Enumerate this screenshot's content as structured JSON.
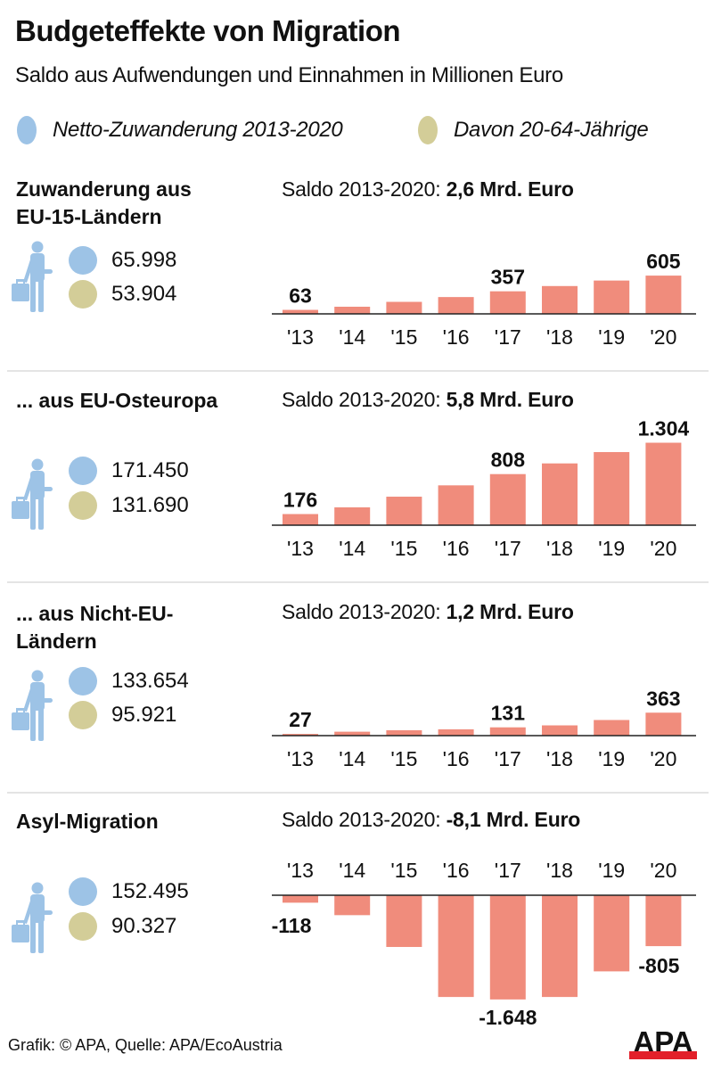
{
  "header": {
    "title": "Budgeteffekte von Migration",
    "subtitle": "Saldo aus Aufwendungen und Einnahmen in Millionen Euro"
  },
  "legend": [
    {
      "label": "Netto-Zuwanderung 2013-2020",
      "color": "#9dc3e6",
      "icon": "circle-blue"
    },
    {
      "label": "Davon 20-64-Jährige",
      "color": "#d3cd98",
      "icon": "circle-olive"
    }
  ],
  "colors": {
    "bar": "#f08c7c",
    "figure": "#9dc3e6",
    "netto": "#9dc3e6",
    "working_age": "#d3cd98",
    "axis": "#222222",
    "separator": "#e4e4e4",
    "logo_red": "#e2202a"
  },
  "sections": [
    {
      "title_lines": [
        "Zuwanderung aus",
        "EU-15-Ländern"
      ],
      "saldo_prefix": "Saldo 2013-2020: ",
      "saldo_value": "2,6 Mrd. Euro",
      "netto": "65.998",
      "working_age": "53.904"
    },
    {
      "title_lines": [
        "... aus EU-Osteuropa"
      ],
      "saldo_prefix": "Saldo 2013-2020: ",
      "saldo_value": "5,8 Mrd. Euro",
      "netto": "171.450",
      "working_age": "131.690"
    },
    {
      "title_lines": [
        "... aus Nicht-EU-",
        "Ländern"
      ],
      "saldo_prefix": "Saldo 2013-2020: ",
      "saldo_value": "1,2 Mrd. Euro",
      "netto": "133.654",
      "working_age": "95.921"
    },
    {
      "title_lines": [
        "Asyl-Migration"
      ],
      "saldo_prefix": "Saldo 2013-2020: ",
      "saldo_value": "-8,1 Mrd. Euro",
      "netto": "152.495",
      "working_age": "90.327"
    }
  ],
  "chart_data": [
    {
      "type": "bar",
      "title": "Zuwanderung aus EU-15-Ländern",
      "categories": [
        "'13",
        "'14",
        "'15",
        "'16",
        "'17",
        "'18",
        "'19",
        "'20"
      ],
      "values": [
        63,
        113,
        190,
        266,
        357,
        440,
        527,
        605
      ],
      "labeled": [
        {
          "index": 0,
          "text": "63"
        },
        {
          "index": 4,
          "text": "357"
        },
        {
          "index": 7,
          "text": "605"
        }
      ],
      "xlabel": "",
      "ylabel": "Mio. Euro",
      "grid": false,
      "legend": "none"
    },
    {
      "type": "bar",
      "title": "... aus EU-Osteuropa",
      "categories": [
        "'13",
        "'14",
        "'15",
        "'16",
        "'17",
        "'18",
        "'19",
        "'20"
      ],
      "values": [
        176,
        282,
        451,
        630,
        808,
        977,
        1156,
        1304
      ],
      "labeled": [
        {
          "index": 0,
          "text": "176"
        },
        {
          "index": 4,
          "text": "808"
        },
        {
          "index": 7,
          "text": "1.304"
        }
      ],
      "xlabel": "",
      "ylabel": "Mio. Euro",
      "grid": false,
      "legend": "none"
    },
    {
      "type": "bar",
      "title": "... aus Nicht-EU-Ländern",
      "categories": [
        "'13",
        "'14",
        "'15",
        "'16",
        "'17",
        "'18",
        "'19",
        "'20"
      ],
      "values": [
        27,
        62,
        85,
        100,
        131,
        162,
        247,
        363
      ],
      "labeled": [
        {
          "index": 0,
          "text": "27"
        },
        {
          "index": 4,
          "text": "131"
        },
        {
          "index": 7,
          "text": "363"
        }
      ],
      "xlabel": "",
      "ylabel": "Mio. Euro",
      "grid": false,
      "legend": "none"
    },
    {
      "type": "bar",
      "title": "Asyl-Migration",
      "categories": [
        "'13",
        "'14",
        "'15",
        "'16",
        "'17",
        "'18",
        "'19",
        "'20"
      ],
      "values": [
        -118,
        -315,
        -818,
        -1609,
        -1648,
        -1609,
        -1204,
        -805
      ],
      "labeled": [
        {
          "index": 0,
          "text": "-118"
        },
        {
          "index": 4,
          "text": "-1.648"
        },
        {
          "index": 7,
          "text": "-805"
        }
      ],
      "xlabel": "",
      "ylabel": "Mio. Euro",
      "grid": false,
      "legend": "none"
    }
  ],
  "footer": {
    "credit": "Grafik: © APA, Quelle: APA/EcoAustria",
    "logo": "APA"
  }
}
